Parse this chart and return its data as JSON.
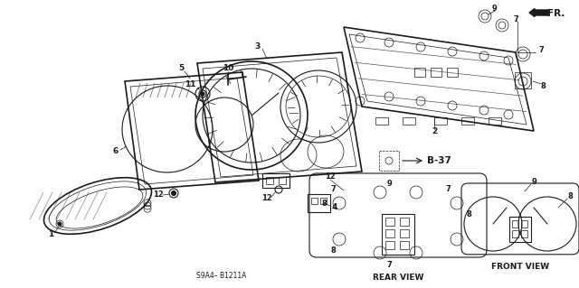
{
  "bg_color": "#ffffff",
  "fig_width": 6.4,
  "fig_height": 3.19,
  "dpi": 100,
  "diagram_code": "S9A4– B1211A",
  "ref_code": "B-37",
  "fr_label": "FR.",
  "rear_view_label": "REAR VIEW",
  "front_view_label": "FRONT VIEW",
  "line_color": "#1a1a1a",
  "gray_fill": "#c8c8c8",
  "light_gray": "#e0e0e0"
}
